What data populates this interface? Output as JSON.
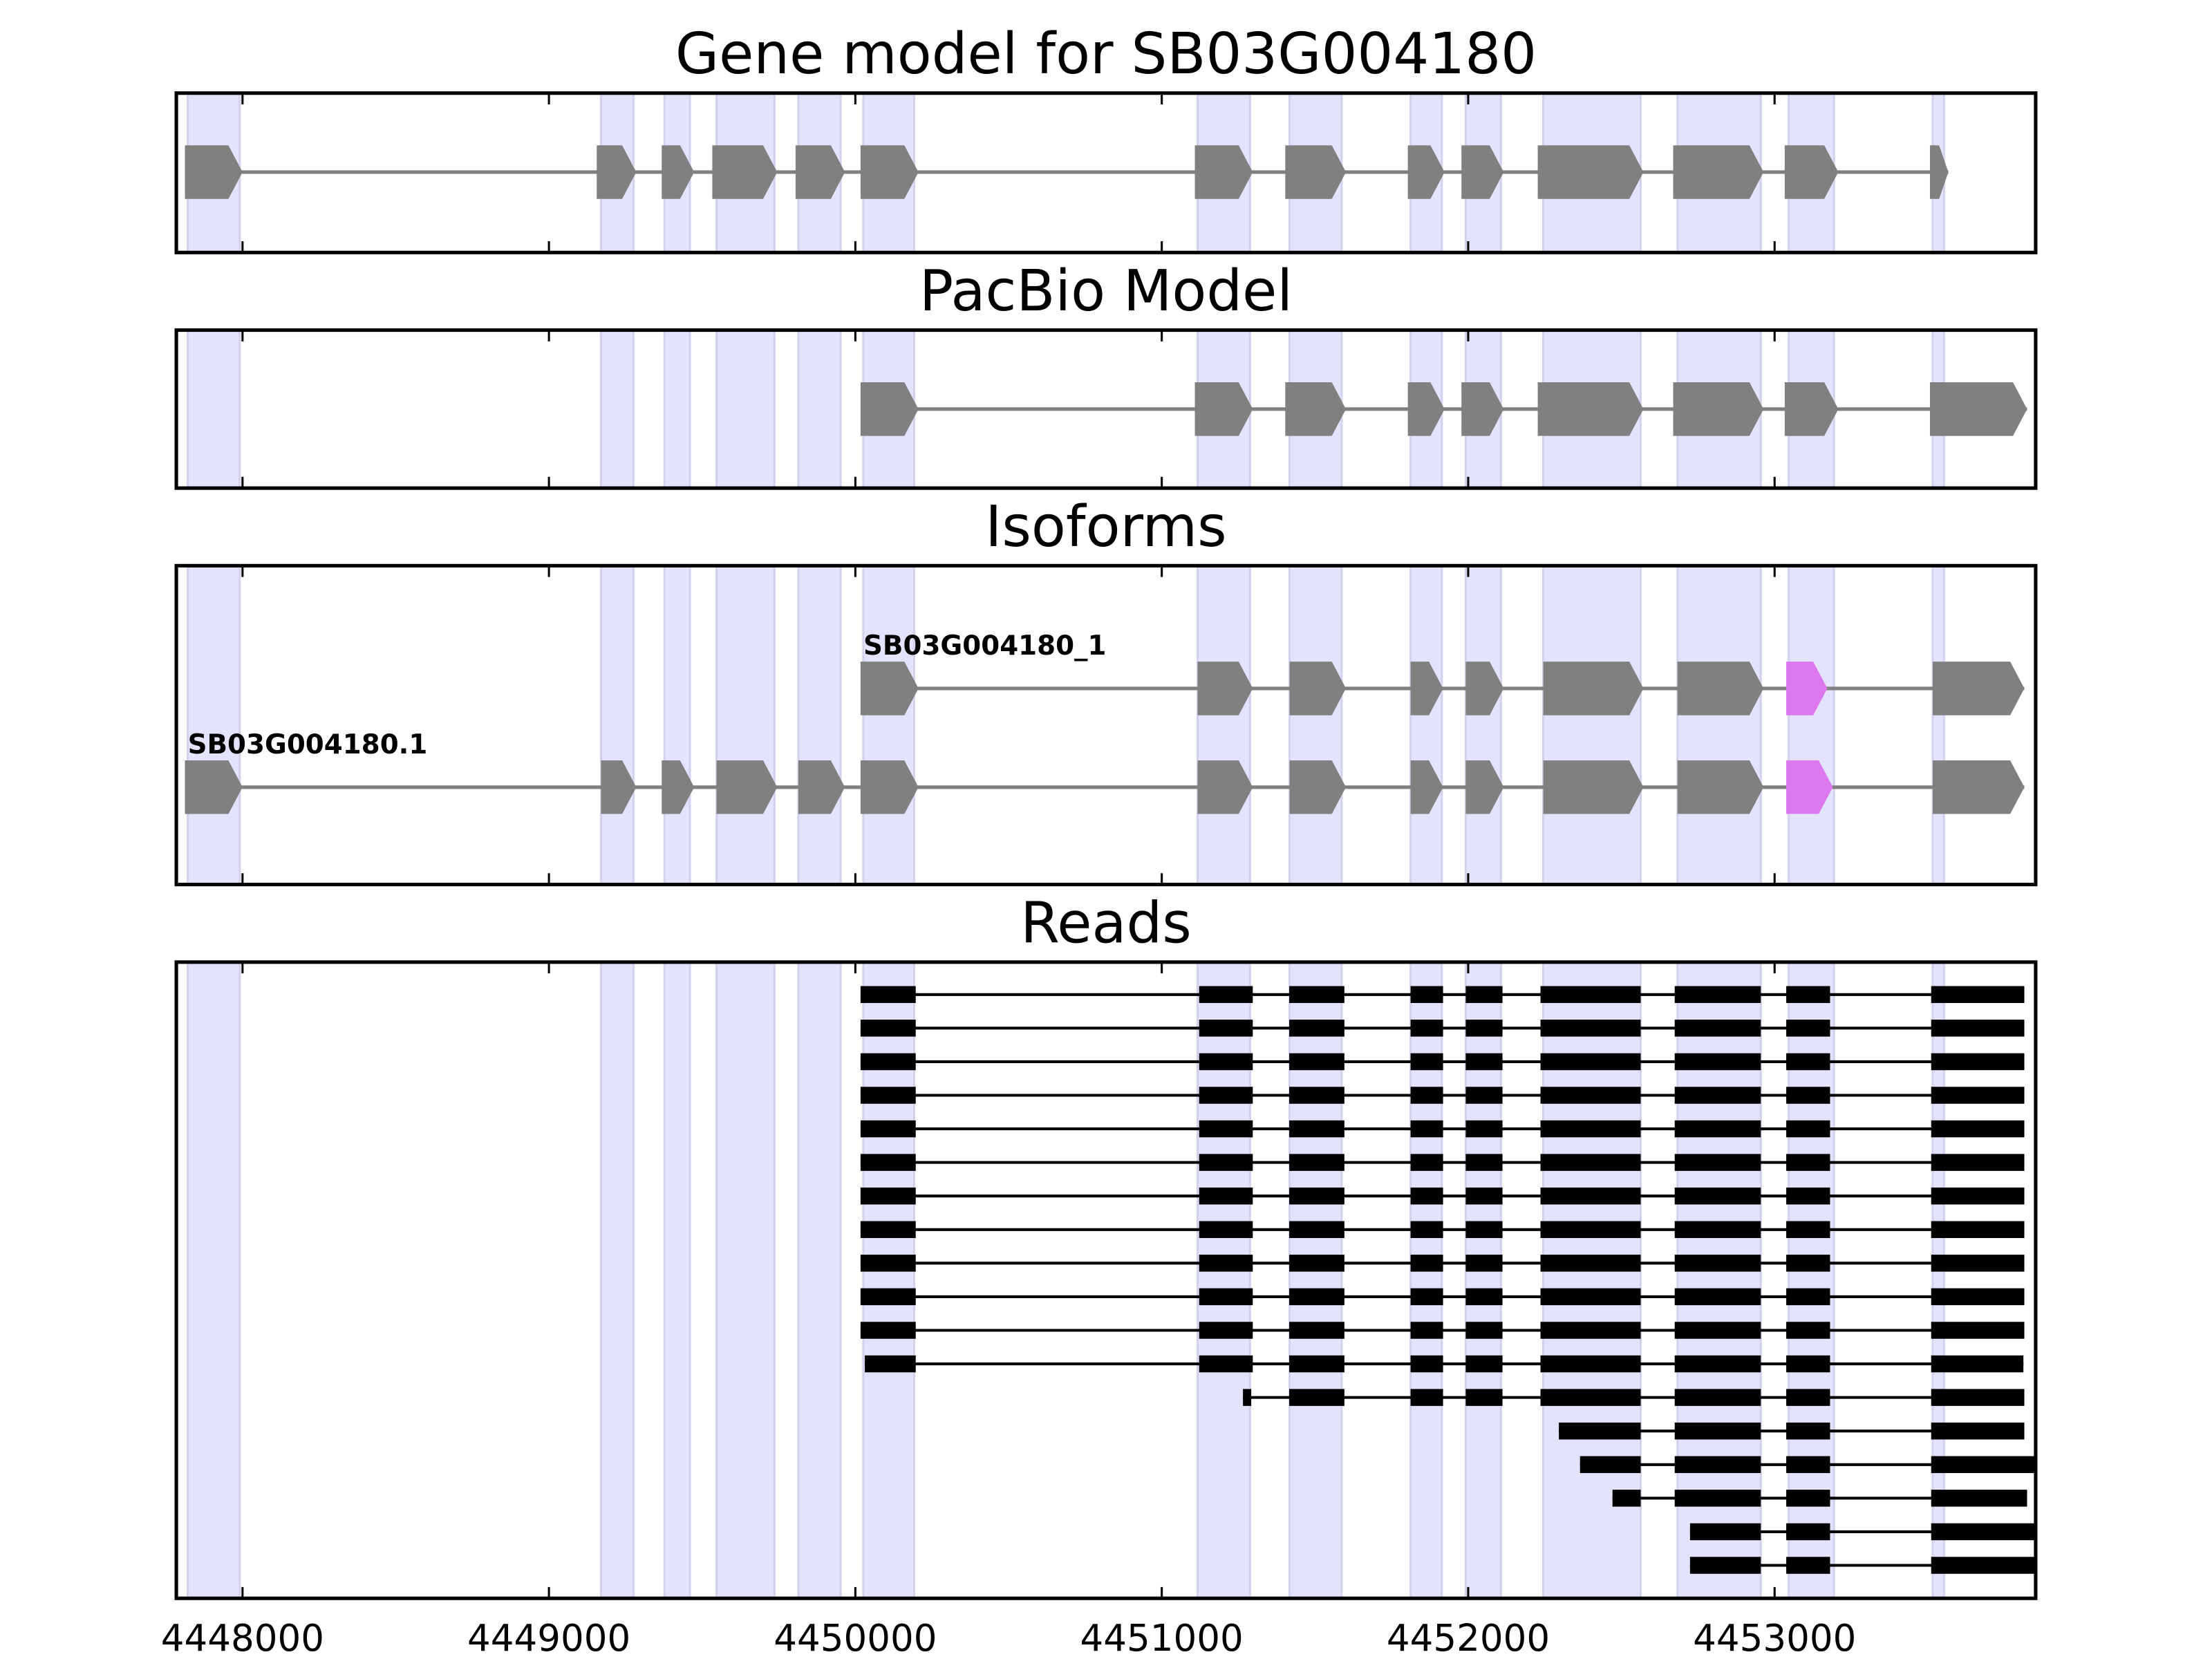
{
  "chart_data": {
    "type": "gene-track",
    "xlim": [
      4447784,
      4453852
    ],
    "xticks": [
      4448000,
      4449000,
      4450000,
      4451000,
      4452000,
      4453000
    ],
    "xtick_labels": [
      "4448000",
      "4449000",
      "4450000",
      "4451000",
      "4452000",
      "4453000"
    ],
    "colors": {
      "shade": "#e3e3fd",
      "exon": "#808080",
      "highlight": "#dd77ee",
      "read": "#000000"
    },
    "shaded_regions": [
      [
        4447821,
        4447991
      ],
      [
        4449170,
        4449276
      ],
      [
        4449377,
        4449460
      ],
      [
        4449547,
        4449736
      ],
      [
        4449814,
        4449952
      ],
      [
        4450026,
        4450192
      ],
      [
        4451117,
        4451288
      ],
      [
        4451417,
        4451587
      ],
      [
        4451812,
        4451914
      ],
      [
        4451992,
        4452107
      ],
      [
        4452245,
        4452563
      ],
      [
        4452683,
        4452955
      ],
      [
        4453046,
        4453194
      ],
      [
        4453516,
        4453553
      ]
    ],
    "panels": [
      {
        "title": "Gene model for SB03G004180",
        "kind": "model",
        "tracks": [
          {
            "label": "",
            "exons": [
              [
                4447812,
                4448000
              ],
              [
                4449156,
                4449285
              ],
              [
                4449368,
                4449474
              ],
              [
                4449533,
                4449745
              ],
              [
                4449805,
                4449966
              ],
              [
                4450017,
                4450206
              ],
              [
                4451108,
                4451297
              ],
              [
                4451403,
                4451601
              ],
              [
                4451803,
                4451923
              ],
              [
                4451978,
                4452116
              ],
              [
                4452227,
                4452572
              ],
              [
                4452669,
                4452964
              ],
              [
                4453033,
                4453208
              ],
              [
                4453507,
                4453567
              ]
            ],
            "highlight": []
          }
        ]
      },
      {
        "title": "PacBio Model",
        "kind": "model",
        "tracks": [
          {
            "label": "",
            "exons": [
              [
                4450017,
                4450206
              ],
              [
                4451108,
                4451297
              ],
              [
                4451403,
                4451601
              ],
              [
                4451803,
                4451923
              ],
              [
                4451978,
                4452116
              ],
              [
                4452227,
                4452572
              ],
              [
                4452669,
                4452964
              ],
              [
                4453033,
                4453208
              ],
              [
                4453507,
                4453824
              ]
            ],
            "highlight": []
          }
        ]
      },
      {
        "title": "Isoforms",
        "kind": "model",
        "tracks": [
          {
            "label": "SB03G004180_1",
            "exons": [
              [
                4450017,
                4450206
              ],
              [
                4451117,
                4451297
              ],
              [
                4451417,
                4451601
              ],
              [
                4451812,
                4451918
              ],
              [
                4451992,
                4452116
              ],
              [
                4452245,
                4452572
              ],
              [
                4452683,
                4452964
              ],
              [
                4453038,
                4453172
              ],
              [
                4453516,
                4453815
              ]
            ],
            "highlight": [
              7
            ]
          },
          {
            "label": "SB03G004180.1",
            "exons": [
              [
                4447812,
                4448000
              ],
              [
                4449170,
                4449285
              ],
              [
                4449368,
                4449474
              ],
              [
                4449547,
                4449745
              ],
              [
                4449814,
                4449966
              ],
              [
                4450017,
                4450206
              ],
              [
                4451117,
                4451297
              ],
              [
                4451417,
                4451601
              ],
              [
                4451812,
                4451918
              ],
              [
                4451992,
                4452116
              ],
              [
                4452245,
                4452572
              ],
              [
                4452683,
                4452964
              ],
              [
                4453038,
                4453190
              ],
              [
                4453516,
                4453815
              ]
            ],
            "highlight": [
              12
            ]
          }
        ]
      },
      {
        "title": "Reads",
        "kind": "reads"
      }
    ],
    "reads": [
      [
        [
          4450017,
          4450197
        ],
        [
          4451122,
          4451297
        ],
        [
          4451416,
          4451596
        ],
        [
          4451812,
          4451918
        ],
        [
          4451992,
          4452112
        ],
        [
          4452236,
          4452563
        ],
        [
          4452674,
          4452955
        ],
        [
          4453038,
          4453181
        ],
        [
          4453511,
          4453815
        ]
      ],
      [
        [
          4450017,
          4450197
        ],
        [
          4451122,
          4451297
        ],
        [
          4451416,
          4451596
        ],
        [
          4451812,
          4451918
        ],
        [
          4451992,
          4452112
        ],
        [
          4452236,
          4452563
        ],
        [
          4452674,
          4452955
        ],
        [
          4453038,
          4453181
        ],
        [
          4453511,
          4453815
        ]
      ],
      [
        [
          4450017,
          4450197
        ],
        [
          4451122,
          4451297
        ],
        [
          4451416,
          4451596
        ],
        [
          4451812,
          4451918
        ],
        [
          4451992,
          4452112
        ],
        [
          4452236,
          4452563
        ],
        [
          4452674,
          4452955
        ],
        [
          4453038,
          4453181
        ],
        [
          4453511,
          4453815
        ]
      ],
      [
        [
          4450017,
          4450197
        ],
        [
          4451122,
          4451297
        ],
        [
          4451416,
          4451596
        ],
        [
          4451812,
          4451918
        ],
        [
          4451992,
          4452112
        ],
        [
          4452236,
          4452563
        ],
        [
          4452674,
          4452955
        ],
        [
          4453038,
          4453181
        ],
        [
          4453511,
          4453815
        ]
      ],
      [
        [
          4450017,
          4450197
        ],
        [
          4451122,
          4451297
        ],
        [
          4451416,
          4451596
        ],
        [
          4451812,
          4451918
        ],
        [
          4451992,
          4452112
        ],
        [
          4452236,
          4452563
        ],
        [
          4452674,
          4452955
        ],
        [
          4453038,
          4453181
        ],
        [
          4453511,
          4453815
        ]
      ],
      [
        [
          4450017,
          4450197
        ],
        [
          4451122,
          4451297
        ],
        [
          4451416,
          4451596
        ],
        [
          4451812,
          4451918
        ],
        [
          4451992,
          4452112
        ],
        [
          4452236,
          4452563
        ],
        [
          4452674,
          4452955
        ],
        [
          4453038,
          4453181
        ],
        [
          4453511,
          4453815
        ]
      ],
      [
        [
          4450017,
          4450197
        ],
        [
          4451122,
          4451297
        ],
        [
          4451416,
          4451596
        ],
        [
          4451812,
          4451918
        ],
        [
          4451992,
          4452112
        ],
        [
          4452236,
          4452563
        ],
        [
          4452674,
          4452955
        ],
        [
          4453038,
          4453181
        ],
        [
          4453511,
          4453815
        ]
      ],
      [
        [
          4450017,
          4450197
        ],
        [
          4451122,
          4451297
        ],
        [
          4451416,
          4451596
        ],
        [
          4451812,
          4451918
        ],
        [
          4451992,
          4452112
        ],
        [
          4452236,
          4452563
        ],
        [
          4452674,
          4452955
        ],
        [
          4453038,
          4453181
        ],
        [
          4453511,
          4453815
        ]
      ],
      [
        [
          4450017,
          4450197
        ],
        [
          4451122,
          4451297
        ],
        [
          4451416,
          4451596
        ],
        [
          4451812,
          4451918
        ],
        [
          4451992,
          4452112
        ],
        [
          4452236,
          4452563
        ],
        [
          4452674,
          4452955
        ],
        [
          4453038,
          4453181
        ],
        [
          4453511,
          4453815
        ]
      ],
      [
        [
          4450017,
          4450197
        ],
        [
          4451122,
          4451297
        ],
        [
          4451416,
          4451596
        ],
        [
          4451812,
          4451918
        ],
        [
          4451992,
          4452112
        ],
        [
          4452236,
          4452563
        ],
        [
          4452674,
          4452955
        ],
        [
          4453038,
          4453181
        ],
        [
          4453511,
          4453815
        ]
      ],
      [
        [
          4450017,
          4450197
        ],
        [
          4451122,
          4451297
        ],
        [
          4451416,
          4451596
        ],
        [
          4451812,
          4451918
        ],
        [
          4451992,
          4452112
        ],
        [
          4452236,
          4452563
        ],
        [
          4452674,
          4452955
        ],
        [
          4453038,
          4453181
        ],
        [
          4453511,
          4453815
        ]
      ],
      [
        [
          4450031,
          4450197
        ],
        [
          4451122,
          4451297
        ],
        [
          4451416,
          4451596
        ],
        [
          4451812,
          4451918
        ],
        [
          4451992,
          4452112
        ],
        [
          4452236,
          4452563
        ],
        [
          4452674,
          4452955
        ],
        [
          4453038,
          4453181
        ],
        [
          4453511,
          4453812
        ]
      ],
      [
        [
          4451265,
          4451292
        ],
        [
          4451416,
          4451596
        ],
        [
          4451812,
          4451918
        ],
        [
          4451992,
          4452112
        ],
        [
          4452236,
          4452563
        ],
        [
          4452674,
          4452955
        ],
        [
          4453038,
          4453181
        ],
        [
          4453511,
          4453815
        ]
      ],
      [
        [
          4452296,
          4452563
        ],
        [
          4452674,
          4452955
        ],
        [
          4453038,
          4453181
        ],
        [
          4453511,
          4453815
        ]
      ],
      [
        [
          4452365,
          4452563
        ],
        [
          4452674,
          4452955
        ],
        [
          4453038,
          4453181
        ],
        [
          4453511,
          4453852
        ]
      ],
      [
        [
          4452471,
          4452563
        ],
        [
          4452674,
          4452955
        ],
        [
          4453038,
          4453181
        ],
        [
          4453511,
          4453824
        ]
      ],
      [
        [
          4452724,
          4452955
        ],
        [
          4453038,
          4453181
        ],
        [
          4453511,
          4453852
        ]
      ],
      [
        [
          4452724,
          4452955
        ],
        [
          4453038,
          4453181
        ],
        [
          4453511,
          4453852
        ]
      ]
    ]
  }
}
